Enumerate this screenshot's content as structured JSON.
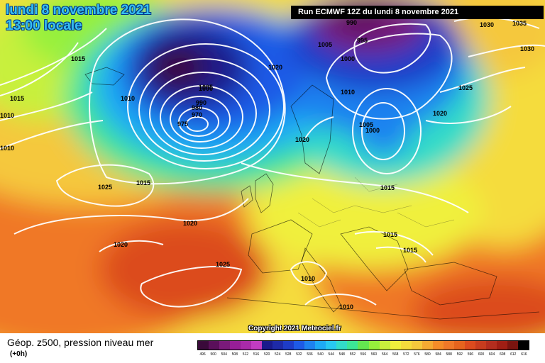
{
  "header": {
    "date": "lundi 8 novembre 2021",
    "time": "13:00 locale",
    "run": "Run ECMWF 12Z du lundi 8 novembre 2021"
  },
  "footer": {
    "title": "Géop. z500, pression niveau mer",
    "subtitle": "(+0h)",
    "copyright": "Copyright 2021 Meteociel.fr"
  },
  "colorbar": {
    "ticks": [
      "496",
      "500",
      "504",
      "508",
      "512",
      "516",
      "520",
      "524",
      "528",
      "532",
      "536",
      "540",
      "544",
      "548",
      "552",
      "556",
      "560",
      "564",
      "568",
      "572",
      "576",
      "580",
      "584",
      "588",
      "592",
      "596",
      "600",
      "604",
      "608",
      "612",
      "616"
    ],
    "colors": [
      "#3a0a3a",
      "#5a0f5a",
      "#7a1a7a",
      "#961e96",
      "#aa2aaa",
      "#c23cc2",
      "#1a1a8c",
      "#1e2aa8",
      "#1e3cc8",
      "#1e5ae6",
      "#1e82f0",
      "#1eaaf5",
      "#28c8f0",
      "#32dcc8",
      "#3ce696",
      "#64e650",
      "#96f03c",
      "#c8f03c",
      "#f0f03c",
      "#f5dc3c",
      "#f5c83c",
      "#f5aa32",
      "#f58c28",
      "#f07828",
      "#e6641e",
      "#dc4b1e",
      "#c83c1e",
      "#b42d1e",
      "#a01e14",
      "#7a140f",
      "#000000"
    ]
  },
  "isobar_labels": [
    {
      "text": "1015",
      "region": "iceland"
    },
    {
      "text": "1015",
      "region": "atlantic-west"
    },
    {
      "text": "1010",
      "region": "atlantic-west-2"
    },
    {
      "text": "1010",
      "region": "atlantic-west-3"
    },
    {
      "text": "1010",
      "region": "low-west"
    },
    {
      "text": "1005",
      "region": "low-core"
    },
    {
      "text": "1000",
      "region": "low-core"
    },
    {
      "text": "990",
      "region": "low-core"
    },
    {
      "text": "980",
      "region": "low-core"
    },
    {
      "text": "970",
      "region": "low-core"
    },
    {
      "text": "975",
      "region": "low-core"
    },
    {
      "text": "1020",
      "region": "norway-sea"
    },
    {
      "text": "990",
      "region": "barents"
    },
    {
      "text": "995",
      "region": "barents"
    },
    {
      "text": "1000",
      "region": "barents"
    },
    {
      "text": "1005",
      "region": "barents"
    },
    {
      "text": "1010",
      "region": "scandinavia"
    },
    {
      "text": "1030",
      "region": "siberia"
    },
    {
      "text": "1035",
      "region": "siberia"
    },
    {
      "text": "1030",
      "region": "siberia-2"
    },
    {
      "text": "1025",
      "region": "russia"
    },
    {
      "text": "1020",
      "region": "russia-2"
    },
    {
      "text": "1005",
      "region": "baltic-low"
    },
    {
      "text": "1000",
      "region": "baltic-low"
    },
    {
      "text": "1020",
      "region": "north-sea"
    },
    {
      "text": "1025",
      "region": "azores-north"
    },
    {
      "text": "1015",
      "region": "azores-north-2"
    },
    {
      "text": "1015",
      "region": "central-europe"
    },
    {
      "text": "1020",
      "region": "azores"
    },
    {
      "text": "1020",
      "region": "azores-2"
    },
    {
      "text": "1025",
      "region": "iberia"
    },
    {
      "text": "1015",
      "region": "balkans"
    },
    {
      "text": "1015",
      "region": "balkans-2"
    },
    {
      "text": "1010",
      "region": "mediterranean"
    },
    {
      "text": "1010",
      "region": "sicily"
    }
  ]
}
